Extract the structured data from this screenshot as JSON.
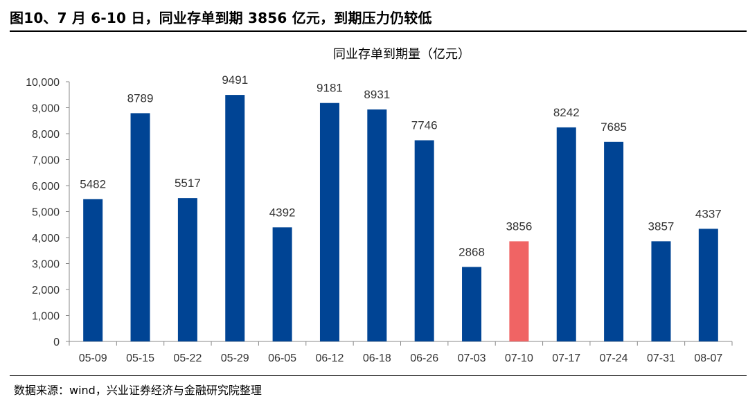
{
  "figure": {
    "caption": "图10、7 月 6-10 日，同业存单到期 3856 亿元，到期压力仍较低",
    "source": "数据来源：wind，兴业证券经济与金融研究院整理"
  },
  "chart_data": {
    "type": "bar",
    "title": "同业存单到期量（亿元）",
    "xlabel": "",
    "ylabel": "",
    "categories": [
      "05-09",
      "05-15",
      "05-22",
      "05-29",
      "06-05",
      "06-12",
      "06-18",
      "06-26",
      "07-03",
      "07-10",
      "07-17",
      "07-24",
      "07-31",
      "08-07"
    ],
    "series": [
      {
        "values": [
          5482,
          8789,
          5517,
          9491,
          4392,
          9181,
          8931,
          7746,
          2868,
          3856,
          8242,
          7685,
          3857,
          4337
        ]
      }
    ],
    "data_labels": [
      "5482",
      "8789",
      "5517",
      "9491",
      "4392",
      "9181",
      "8931",
      "7746",
      "2868",
      "3856",
      "8242",
      "7685",
      "3857",
      "4337"
    ],
    "highlight_index": 9,
    "ylim": [
      0,
      10000
    ],
    "yticks": [
      0,
      1000,
      2000,
      3000,
      4000,
      5000,
      6000,
      7000,
      8000,
      9000,
      10000
    ],
    "ytick_labels": [
      "0",
      "1,000",
      "2,000",
      "3,000",
      "4,000",
      "5,000",
      "6,000",
      "7,000",
      "8,000",
      "9,000",
      "10,000"
    ],
    "grid": false,
    "legend": "none",
    "colors": {
      "bar": "#004494",
      "highlight": "#F06464",
      "axis": "#888888"
    }
  }
}
